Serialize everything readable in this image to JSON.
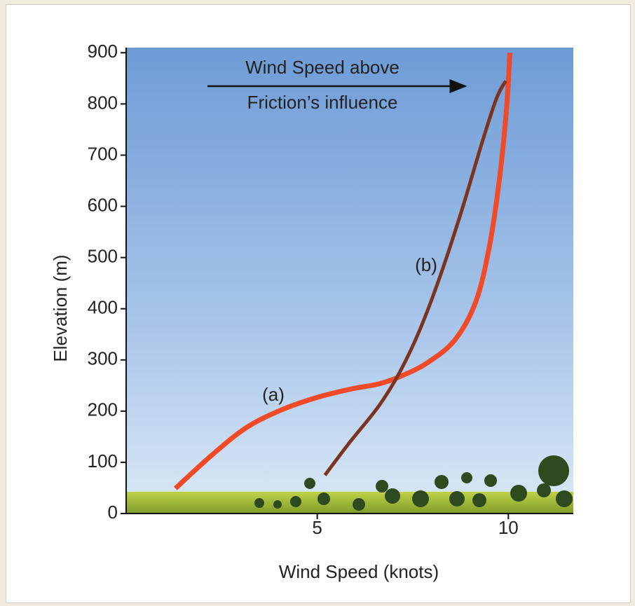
{
  "chart_data": {
    "type": "line",
    "x_label": "Wind Speed (knots)",
    "y_label": "Elevation (m)",
    "annotation": [
      "Wind Speed above",
      "Friction’s influence"
    ],
    "xlim": [
      0,
      11.7
    ],
    "ylim": [
      0,
      910
    ],
    "xticks": [
      5,
      10
    ],
    "yticks": [
      0,
      100,
      200,
      300,
      400,
      500,
      600,
      700,
      800,
      900
    ],
    "series": [
      {
        "name": "(a)",
        "color": "#f04a28",
        "x": [
          1.29,
          2.24,
          3.15,
          4.05,
          4.96,
          5.87,
          6.6,
          7.15,
          7.87,
          8.6,
          9.15,
          9.51,
          9.78,
          9.96,
          10.04
        ],
        "values": [
          49,
          114,
          168,
          202,
          226,
          243,
          253,
          267,
          294,
          339,
          414,
          524,
          661,
          798,
          900
        ]
      },
      {
        "name": "(b)",
        "color": "#7a3420",
        "x": [
          5.2,
          5.87,
          6.6,
          7.15,
          7.69,
          8.24,
          8.78,
          9.33,
          9.69,
          9.93
        ],
        "values": [
          75,
          141,
          209,
          275,
          360,
          469,
          592,
          729,
          811,
          845
        ]
      }
    ]
  }
}
